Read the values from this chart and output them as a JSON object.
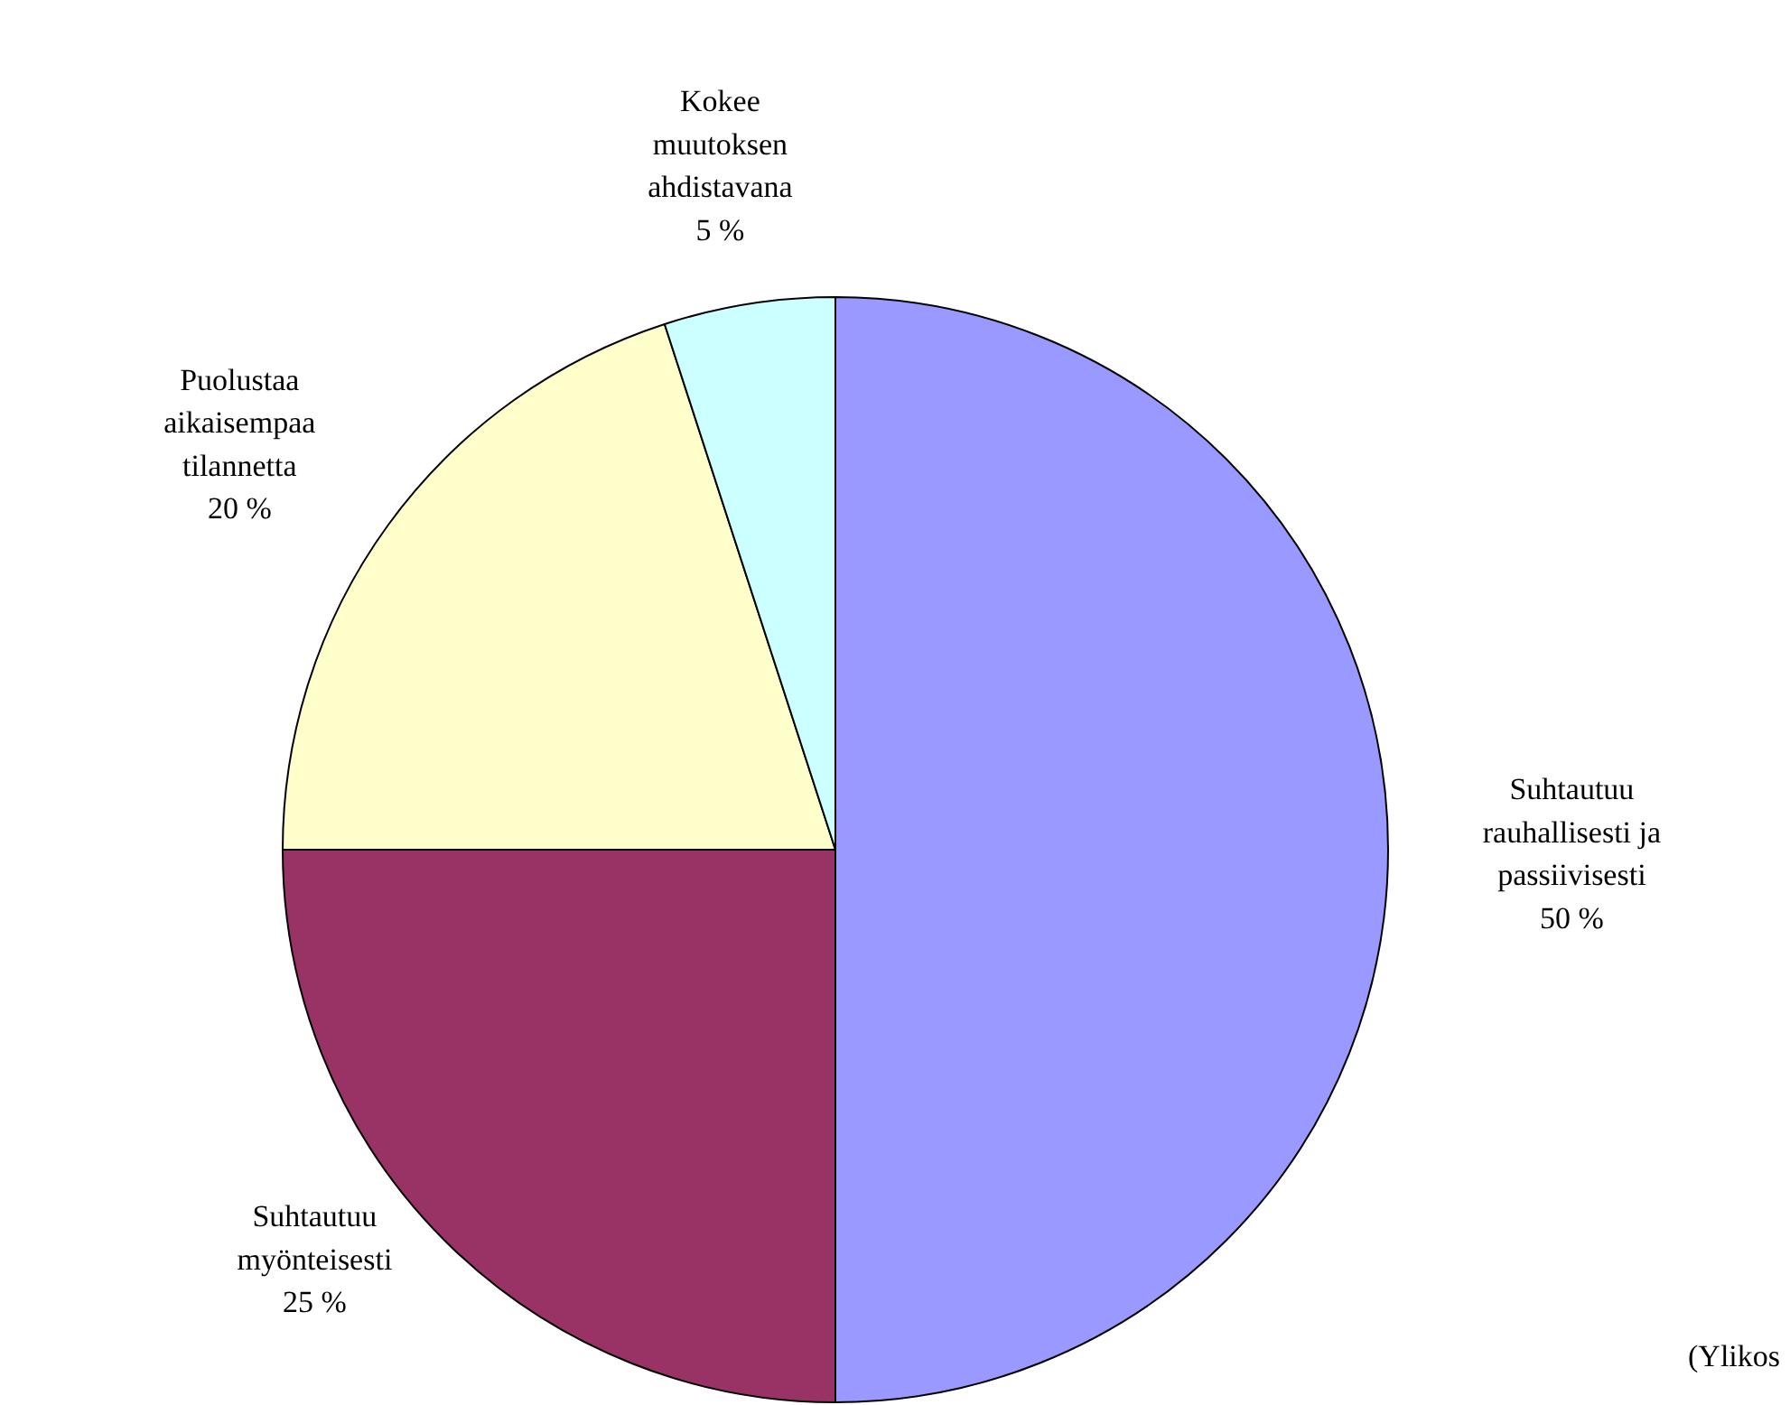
{
  "chart_data": {
    "type": "pie",
    "categories": [
      "Suhtautuu\nrauhallisesti ja\npassiivisesti",
      "Suhtautuu\nmyönteisesti",
      "Puolustaa\naikaisempaa\ntilannetta",
      "Kokee\nmuutoksen\nahdistavana"
    ],
    "values": [
      50,
      25,
      20,
      5
    ],
    "colors": [
      "#9999ff",
      "#993366",
      "#ffffcc",
      "#ccffff"
    ],
    "value_labels": [
      "50 %",
      "25 %",
      "20 %",
      "5 %"
    ],
    "annotations": [
      "(Ylikos"
    ]
  }
}
